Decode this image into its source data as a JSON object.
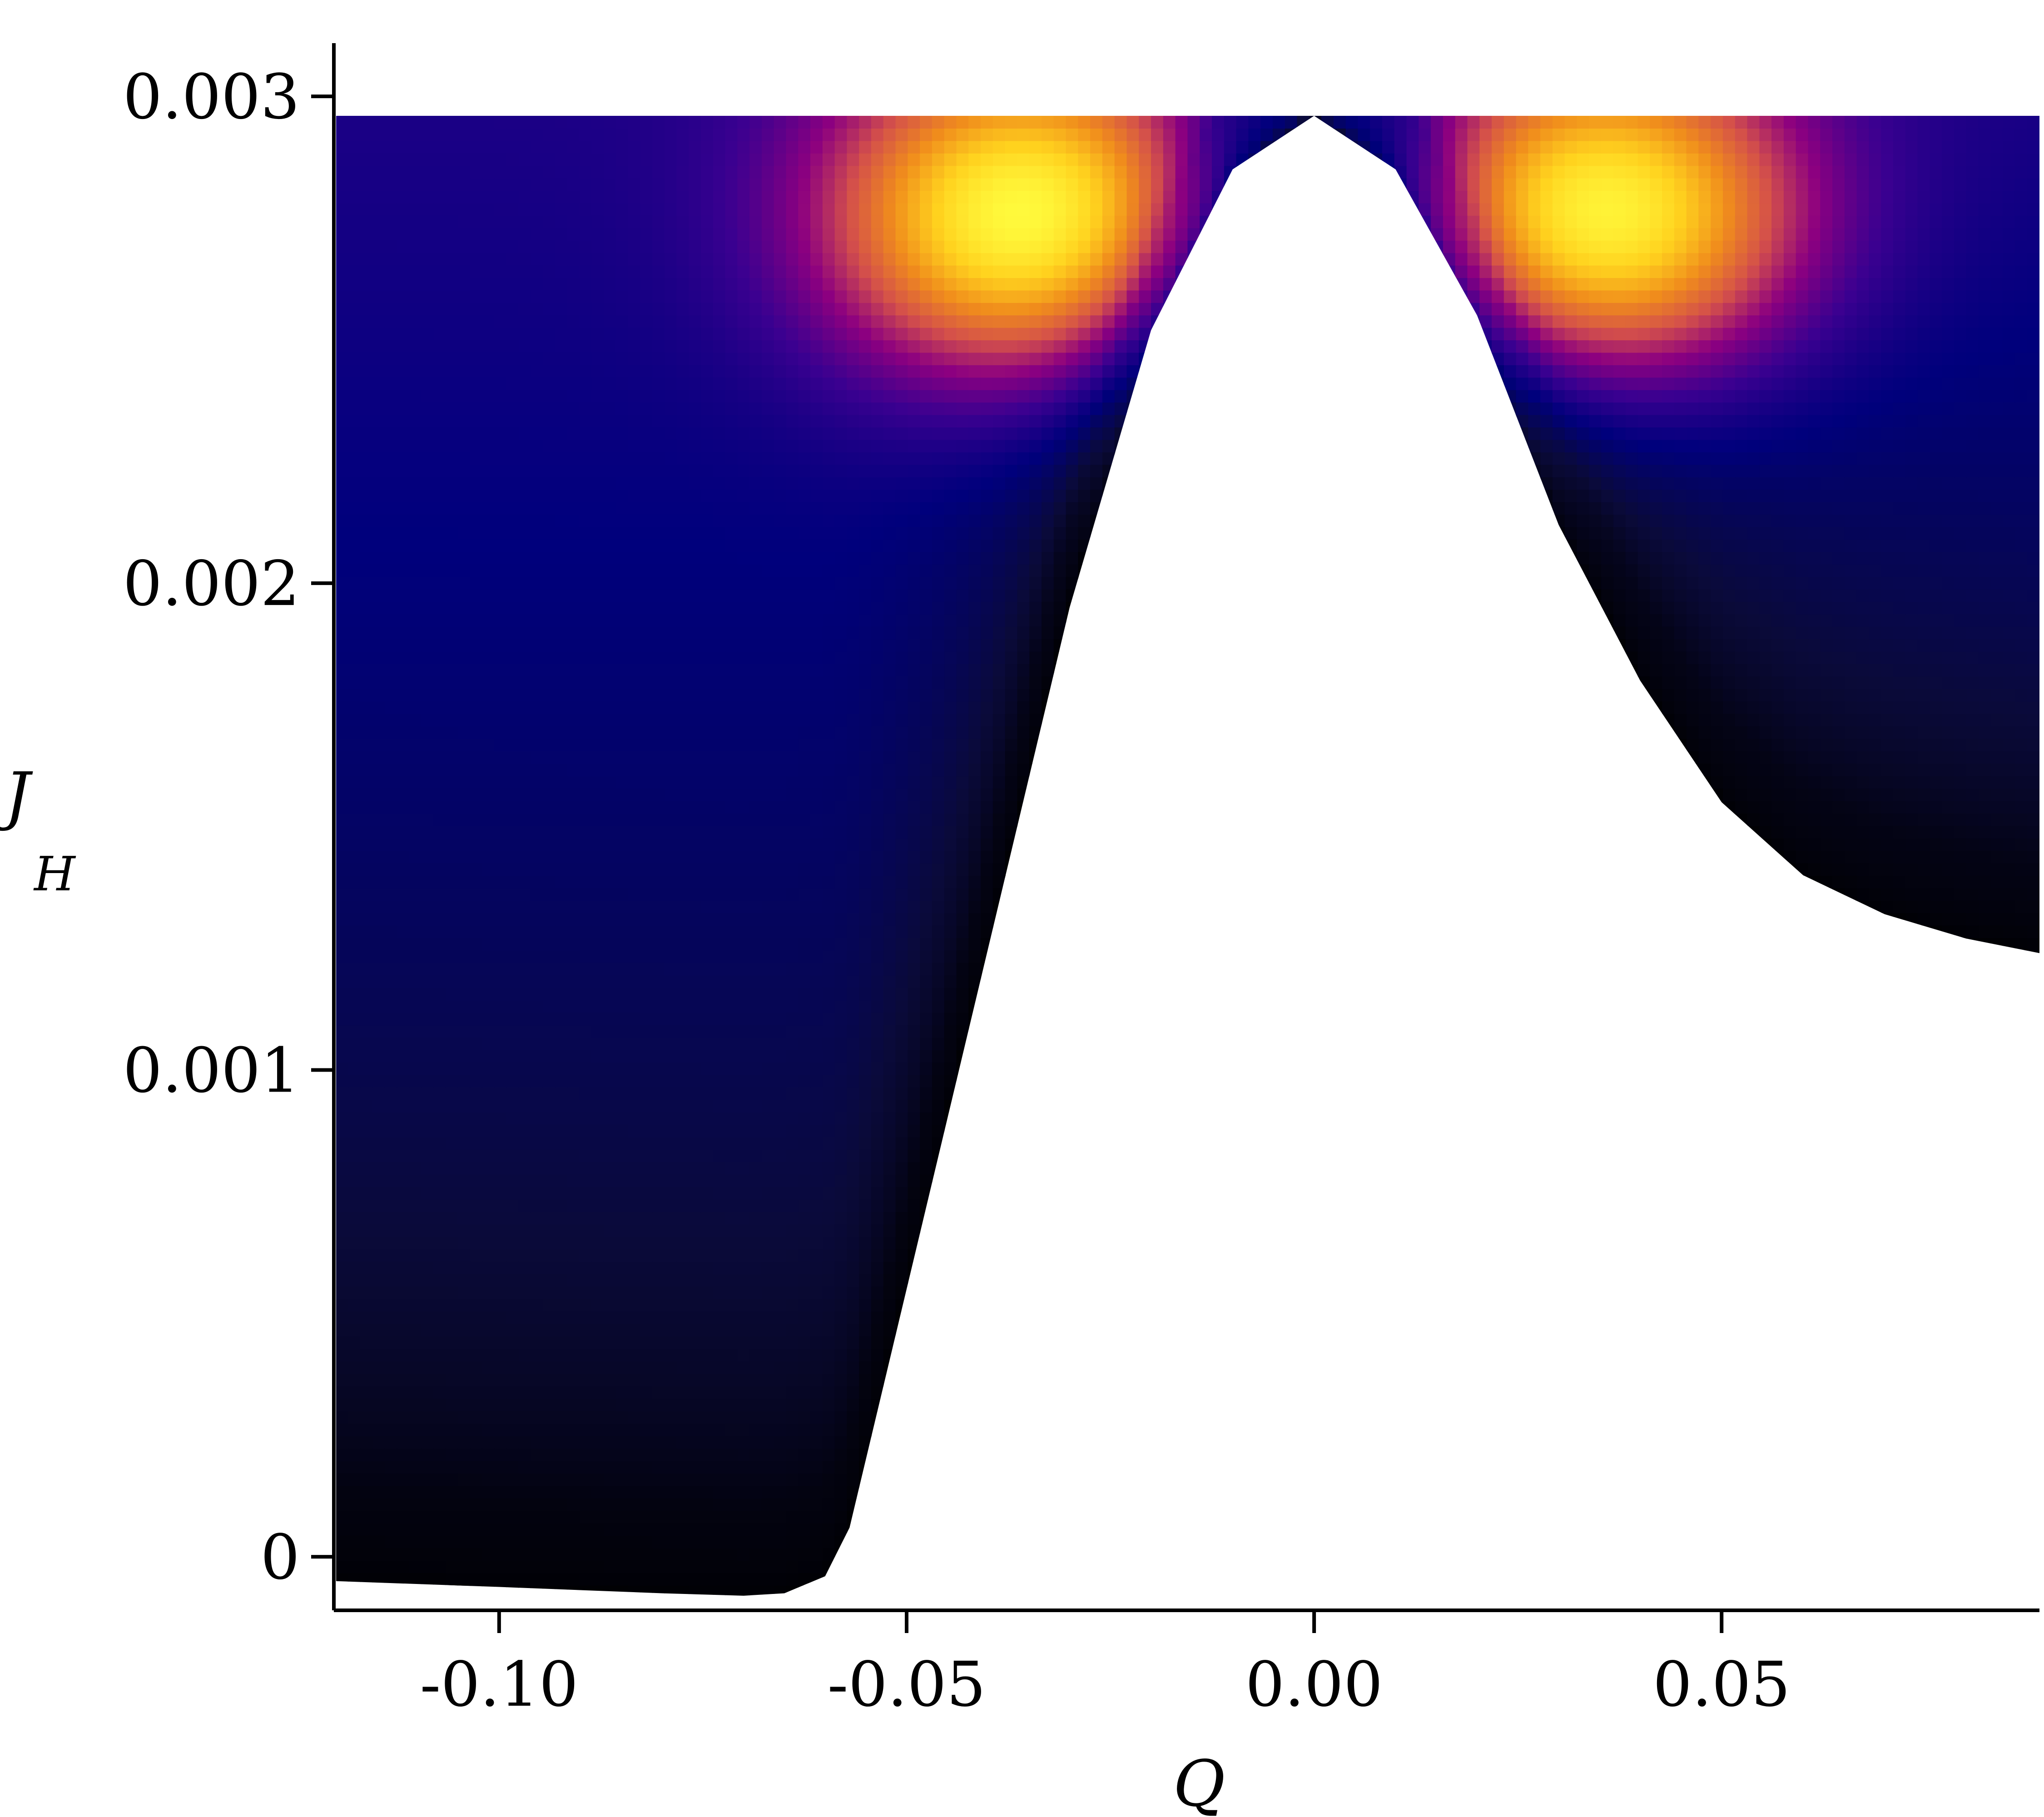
{
  "chart_data": {
    "type": "heatmap",
    "title": "",
    "xlabel": "Q",
    "ylabel": "J",
    "ylabel_subscript": "H",
    "xlim": [
      -0.12,
      0.089
    ],
    "ylim": [
      -0.00011,
      0.0031
    ],
    "xticks": [
      -0.1,
      -0.05,
      0.0,
      0.05
    ],
    "xtick_labels": [
      "-0.10",
      "-0.05",
      "0.00",
      "0.05"
    ],
    "yticks": [
      0,
      0.001,
      0.002,
      0.003
    ],
    "ytick_labels": [
      "0",
      "0.001",
      "0.002",
      "0.003"
    ],
    "region": {
      "top_J": 0.00296,
      "left_Q": -0.12,
      "right_Q": 0.089,
      "lower_boundary": [
        [
          -0.12,
          -5e-05
        ],
        [
          -0.1,
          -6.2e-05
        ],
        [
          -0.08,
          -7.5e-05
        ],
        [
          -0.07,
          -8e-05
        ],
        [
          -0.065,
          -7.5e-05
        ],
        [
          -0.06,
          -4e-05
        ],
        [
          -0.057,
          6e-05
        ],
        [
          -0.05,
          0.00055
        ],
        [
          -0.04,
          0.00125
        ],
        [
          -0.03,
          0.00195
        ],
        [
          -0.02,
          0.00252
        ],
        [
          -0.01,
          0.00285
        ],
        [
          0.0,
          0.00296
        ],
        [
          0.01,
          0.00285
        ],
        [
          0.02,
          0.00255
        ],
        [
          0.03,
          0.00212
        ],
        [
          0.04,
          0.0018
        ],
        [
          0.05,
          0.00155
        ],
        [
          0.06,
          0.0014
        ],
        [
          0.07,
          0.00132
        ],
        [
          0.08,
          0.00127
        ],
        [
          0.089,
          0.00124
        ]
      ]
    },
    "colormap": [
      "#000000",
      "#0a0a3a",
      "#00007c",
      "#3a0090",
      "#8c0080",
      "#d4504a",
      "#f08c1c",
      "#ffd21e",
      "#ffff40"
    ],
    "peaks": [
      {
        "Q": -0.035,
        "J": 0.00275,
        "intensity": 1.0
      },
      {
        "Q": 0.035,
        "J": 0.00275,
        "intensity": 1.0
      }
    ],
    "grid": false,
    "legend": "none"
  }
}
